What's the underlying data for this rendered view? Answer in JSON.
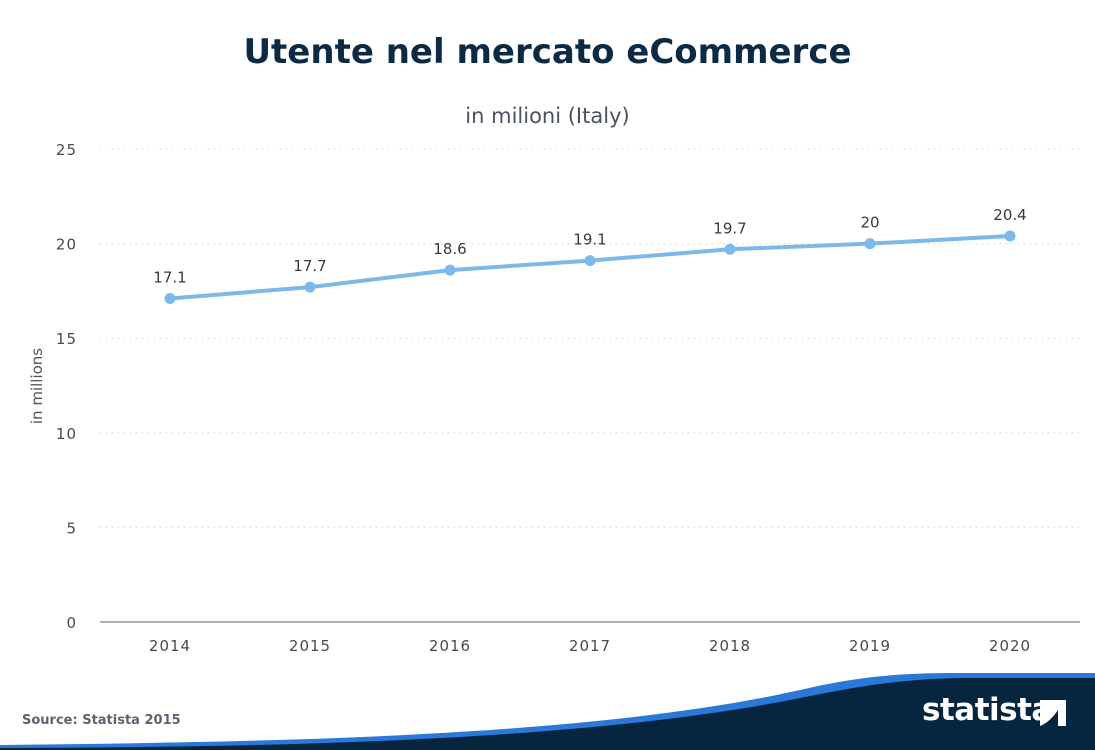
{
  "chart_data": {
    "type": "line",
    "title": "Utente nel mercato eCommerce",
    "subtitle": "in milioni (Italy)",
    "xlabel": "",
    "ylabel": "in millions",
    "categories": [
      "2014",
      "2015",
      "2016",
      "2017",
      "2018",
      "2019",
      "2020"
    ],
    "values": [
      17.1,
      17.7,
      18.6,
      19.1,
      19.7,
      20,
      20.4
    ],
    "data_labels": [
      "17.1",
      "17.7",
      "18.6",
      "19.1",
      "19.7",
      "20",
      "20.4"
    ],
    "ylim": [
      0,
      25
    ],
    "yticks": [
      "0",
      "5",
      "10",
      "15",
      "20",
      "25"
    ],
    "grid": true,
    "line_color": "#7cb9ea"
  },
  "footer": {
    "source": "Source: Statista 2015",
    "logo": "statista"
  },
  "colors": {
    "title": "#0d2a45",
    "footer_dark": "#06263f",
    "footer_blue": "#2a78d8"
  }
}
